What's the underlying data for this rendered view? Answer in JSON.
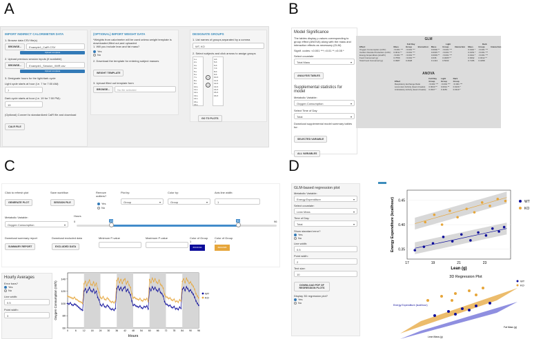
{
  "labels": {
    "A": "A",
    "B": "B",
    "C": "C",
    "D": "D"
  },
  "A": {
    "col1": {
      "header": "IMPORT INDIRECT CALORIMETER DATA",
      "s1": "1. Browse data CSV file(s)",
      "browse": "BROWSE...",
      "file1": "Example1_CalR.CSV",
      "prog": "Upload complete",
      "s2": "2. Upload previous session inputs (if available)",
      "file2": "Example1_Session_XMR.csv",
      "s3": "3. Designate hours for the light/dark cycle",
      "light": "Light cycle starts at hour (i.e. 7 for 7:00 AM):",
      "light_val": "7",
      "dark": "Dark cycle starts at hour (i.e. 19 for 7:00 PM):",
      "dark_val": "19",
      "opt": "(Optional) Convert to standardized CalR file and download",
      "calr_btn": "CALR FILE"
    },
    "col2": {
      "header": "(OPTIONAL) IMPORT WEIGHT DATA",
      "note": "*Weights from calorimeter will be used unless weight template is downloaded,filled out,and uploaded",
      "s1": "1. Will you include lean and fat mass?",
      "yes": "Yes",
      "no": "No",
      "s2": "2. Download the template for entering subject masses",
      "wt_btn": "WEIGHT TEMPLATE",
      "s3": "3. Upload filled out template form",
      "browse": "BROWSE...",
      "nofile": "No file selected"
    },
    "col3": {
      "header": "DESIGNATE GROUPS",
      "s1": "1. List names of groups,separated by a comma",
      "groups": "WT, KO",
      "s2": "2. Select subjects and click arrows to assign groups",
      "left_list": [
        "1-L",
        "2-L",
        "3-L",
        "4-L",
        "5-L",
        "6-L",
        "7-L",
        "8-L",
        "9-L",
        "10-L",
        "11-L",
        "12-L",
        "13-L",
        "14-L",
        "15-L",
        "16-L"
      ],
      "right_list": [
        "4-K",
        "5-K",
        "6-K",
        "7-K",
        "8-K",
        "9-K",
        "10-K",
        "11-K",
        "12-K",
        "13-K",
        "14-K",
        "15-K",
        "16-K"
      ],
      "goto": "GO TO PLOTS"
    }
  },
  "B": {
    "title": "Model Significance",
    "desc": "The tables display p-values corresponding to group effect (ANOVA) along with the mass and interaction effects as necessary (GLM)",
    "codes": "Signif. codes: <0.001 ***,<0.01 **,<0.05 *",
    "cov_lbl": "Select covariate",
    "cov_val": "Total Mass",
    "analysis_btn": "ANALYSIS TABLES",
    "supp": "Supplemental statistics for model",
    "met_lbl": "Metabolic Variable:",
    "met_val": "Oxygen Consumption",
    "tod_lbl": "Select Time of Day",
    "tod_val": "Total",
    "dl_lbl": "Download supplemental model summary tables for:",
    "sel_btn": "SELECTED VARIABLE",
    "all_btn": "ALL VARIABLES",
    "glm_title": "GLM",
    "glm_groups": [
      "Full Day",
      "Light",
      "Dark"
    ],
    "glm_cols": [
      "Effect",
      "Mass",
      "Group",
      "Interaction"
    ],
    "glm_rows": [
      [
        "Oxygen Consumption (ml/hr)",
        "<0.001 ***",
        "<0.001 ***",
        "",
        "0.0002 **",
        "<0.001 ***",
        "",
        "0.0116 *",
        "<0.001 ***",
        ""
      ],
      [
        "Carbon Dioxide Production (ml/hr)",
        "0.0011 **",
        "<0.001 ***",
        "",
        "0.0015 **",
        "<0.001 ***",
        "",
        "0.0151 *",
        "<0.001 ***",
        ""
      ],
      [
        "Energy Expenditure (kcal/hr)",
        "<0.001 ***",
        "<0.001 ***",
        "",
        "0.0003 **",
        "<0.001 ***",
        "",
        "0.0114 *",
        "<0.001 ***",
        ""
      ],
      [
        "Food Consumed (g)",
        "0.7559",
        "<0.001 ***",
        "",
        "0.636",
        "0.0005 **",
        "",
        "0.9362",
        "0.0012 **",
        ""
      ],
      [
        "Total Food Consumed (g)",
        "0.0987",
        "0.4628",
        "",
        "0.1413",
        "0.5633",
        "",
        "0.7186",
        "0.4058",
        ""
      ]
    ],
    "anova_title": "ANOVA",
    "anova_groups": [
      "Full Day",
      "Light",
      "Dark"
    ],
    "anova_cols": [
      "Effect",
      "Group",
      "Group",
      "Group"
    ],
    "anova_rows": [
      [
        "Respiratory Exchange Ratio",
        "<0.001 ***",
        "<0.001 ***",
        "<0.001 ***"
      ],
      [
        "Locomotor Activity (beam breaks)",
        "0.0043 **",
        "0.0012 **",
        "0.0216 *"
      ],
      [
        "Ambulatory Activity (beam breaks)",
        "0.0347 *",
        "0.1183",
        "0.0119 *"
      ]
    ]
  },
  "C": {
    "refresh": "Click to refresh plot",
    "gen_btn": "GENERATE PLOT",
    "save": "Save workflow",
    "sess_btn": "SESSION FILE",
    "outliers": "Remove outliers?",
    "yes": "Yes",
    "no": "No",
    "plotby": "Plot by:",
    "plotby_val": "Group",
    "colorby": "Color by:",
    "colorby_val": "Group",
    "axis": "Axis line width:",
    "axis_val": "1",
    "hours": "Hours",
    "hours_min": "0",
    "hours_max": "96",
    "h_lo": "13",
    "h_hi": "90",
    "met": "Metabolic Variable:",
    "met_val": "Oxygen Consumption",
    "dl_sum": "Download summary report",
    "sum_btn": "SUMMARY REPORT",
    "dl_exc": "Download excluded data",
    "exc_btn": "EXCLUDED DATA",
    "minp": "Minimum P-value",
    "maxp": "Maximum P-value",
    "col1": "Color of Group 1",
    "col1_val": "#0C0C9A",
    "col2": "Color of Group 2",
    "col2_val": "#E6A63B",
    "hourly": "Hourly Averages",
    "err": "Error bars?",
    "err_yes": "Yes",
    "err_no": "No",
    "lw": "Line width:",
    "lw_val": "0.5",
    "pw": "Point width:",
    "pw_val": "3",
    "chart_data": {
      "type": "line",
      "title": "",
      "xlabel": "Hours",
      "ylabel": "Oxygen Consumption (ml/h)",
      "ylim": [
        60,
        150
      ],
      "xlim": [
        0,
        96
      ],
      "yticks": [
        60,
        80,
        100,
        120,
        140
      ],
      "xticks": [
        0,
        6,
        12,
        18,
        24,
        30,
        36,
        42,
        48,
        54,
        60,
        66,
        72,
        78,
        84,
        90,
        96
      ],
      "series": [
        {
          "name": "WT",
          "color": "#0C0C9A",
          "values": [
            100,
            99,
            101,
            98,
            97,
            99,
            98,
            96,
            94,
            92,
            90,
            89,
            120,
            124,
            118,
            122,
            126,
            121,
            119,
            123,
            117,
            120,
            110,
            106,
            98,
            96,
            99,
            95,
            94,
            97,
            95,
            92,
            90,
            91,
            89,
            92,
            124,
            128,
            122,
            126,
            121,
            125,
            127,
            120,
            123,
            118,
            114,
            104,
            97,
            98,
            96,
            95,
            94,
            96,
            93,
            92,
            95,
            94,
            96,
            91,
            125,
            121,
            127,
            123,
            126,
            122,
            120,
            124,
            118,
            116,
            112,
            103,
            99,
            98,
            96,
            97,
            94,
            93,
            95,
            91,
            92,
            90,
            94,
            92,
            123,
            126,
            121,
            127,
            124,
            120,
            122,
            118,
            115,
            110,
            104,
            100,
            97
          ]
        },
        {
          "name": "KO",
          "color": "#E6A63B",
          "values": [
            112,
            111,
            110,
            109,
            108,
            110,
            107,
            106,
            104,
            103,
            102,
            100,
            132,
            136,
            129,
            134,
            138,
            131,
            130,
            135,
            129,
            133,
            124,
            118,
            110,
            108,
            111,
            107,
            106,
            109,
            107,
            104,
            102,
            103,
            101,
            104,
            137,
            141,
            134,
            139,
            133,
            138,
            140,
            132,
            136,
            130,
            126,
            116,
            109,
            110,
            108,
            107,
            106,
            108,
            105,
            104,
            107,
            106,
            108,
            103,
            139,
            134,
            141,
            136,
            140,
            135,
            133,
            138,
            131,
            129,
            125,
            115,
            111,
            110,
            108,
            109,
            106,
            105,
            107,
            103,
            104,
            102,
            106,
            104,
            136,
            140,
            134,
            141,
            137,
            133,
            135,
            131,
            128,
            123,
            116,
            112,
            109
          ]
        }
      ]
    }
  },
  "D": {
    "title": "GLM-based regression plot",
    "met": "Metabolic Variable:",
    "met_val": "Energy.Expenditure",
    "cov": "Select covariate:",
    "cov_val": "Lean Mass",
    "tod": "Time of Day:",
    "tod_val": "Total",
    "se": "Show standard error?",
    "yes": "Yes",
    "no": "No",
    "lw": "Line width:",
    "lw_val": "0.5",
    "pw": "Point width:",
    "pw_val": "2",
    "font": "Text size:",
    "font_val": "10",
    "dl_btn": "DOWNLOAD PDF OF REGRESSION PLOTS",
    "d3": "Display 3D regression plot?",
    "d3_yes": "Yes",
    "d3_no": "No",
    "chart_data": {
      "type": "scatter",
      "xlabel": "Lean (g)",
      "ylabel": "Energy Expenditure (kcal/hour)",
      "xlim": [
        17,
        25
      ],
      "ylim": [
        0.33,
        0.47
      ],
      "xticks": [
        17,
        19,
        21,
        23
      ],
      "yticks": [
        0.35,
        0.4,
        0.45
      ],
      "series": [
        {
          "name": "WT",
          "color": "#0C0C9A",
          "x": [
            17.6,
            18.3,
            19.0,
            19.8,
            20.5,
            21.2,
            21.9,
            22.5,
            23.1,
            23.6,
            24.1,
            24.5
          ],
          "y": [
            0.348,
            0.355,
            0.362,
            0.375,
            0.366,
            0.38,
            0.368,
            0.384,
            0.378,
            0.392,
            0.386,
            0.395
          ],
          "fit": [
            0.352,
            0.392
          ]
        },
        {
          "name": "KO",
          "color": "#E6A63B",
          "x": [
            18.4,
            19.1,
            19.7,
            20.3,
            20.9,
            21.6,
            22.2,
            22.8,
            23.4,
            24.0,
            24.6
          ],
          "y": [
            0.405,
            0.42,
            0.4,
            0.428,
            0.415,
            0.432,
            0.425,
            0.445,
            0.438,
            0.452,
            0.448
          ],
          "fit": [
            0.402,
            0.455
          ]
        }
      ]
    },
    "plot3d_title": "3D Regression Plot",
    "plot3d_z": "Energy Expenditure (kcal/hour)",
    "plot3d_x": "Lean Mass (g)",
    "plot3d_y": "Fat Mass (g)",
    "legend": [
      "WT",
      "KO"
    ]
  }
}
